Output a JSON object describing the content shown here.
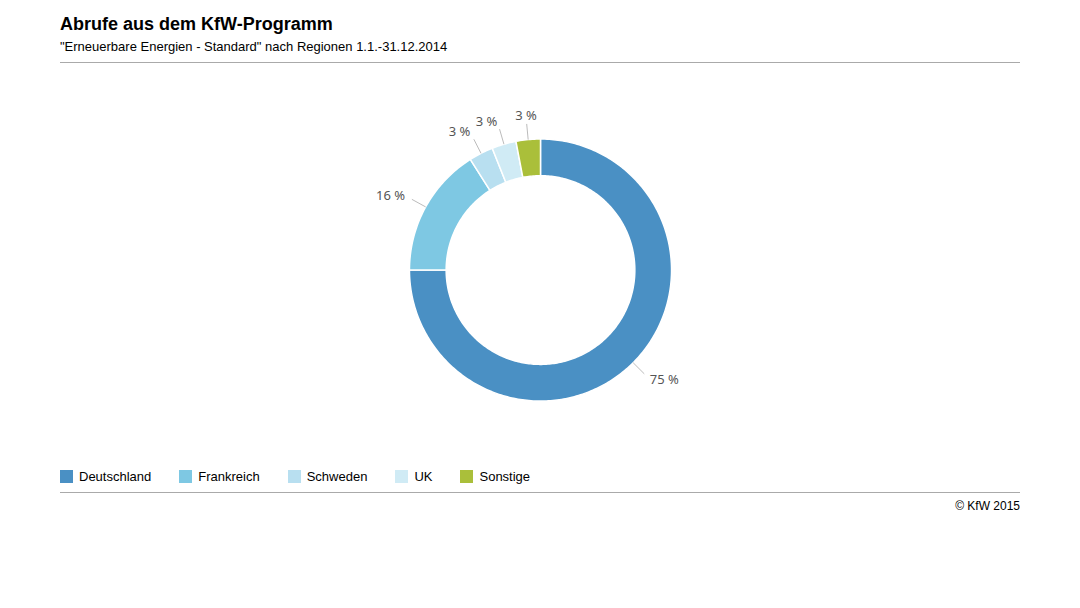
{
  "chart_data": {
    "type": "donut",
    "title": "Abrufe aus dem KfW-Programm",
    "subtitle": "\"Erneuerbare Energien - Standard\" nach Regionen 1.1.-31.12.2014",
    "categories": [
      "Deutschland",
      "Frankreich",
      "Schweden",
      "UK",
      "Sonstige"
    ],
    "values": [
      75,
      16,
      3,
      3,
      3
    ],
    "value_labels": [
      "75 %",
      "16 %",
      "3 %",
      "3 %",
      "3 %"
    ],
    "colors": [
      "#4A90C4",
      "#7EC8E3",
      "#B8DFF0",
      "#D0EBF5",
      "#AABF3A"
    ],
    "data_labels": true,
    "legend": "lower left",
    "annotations": [
      "© KfW 2015"
    ]
  }
}
